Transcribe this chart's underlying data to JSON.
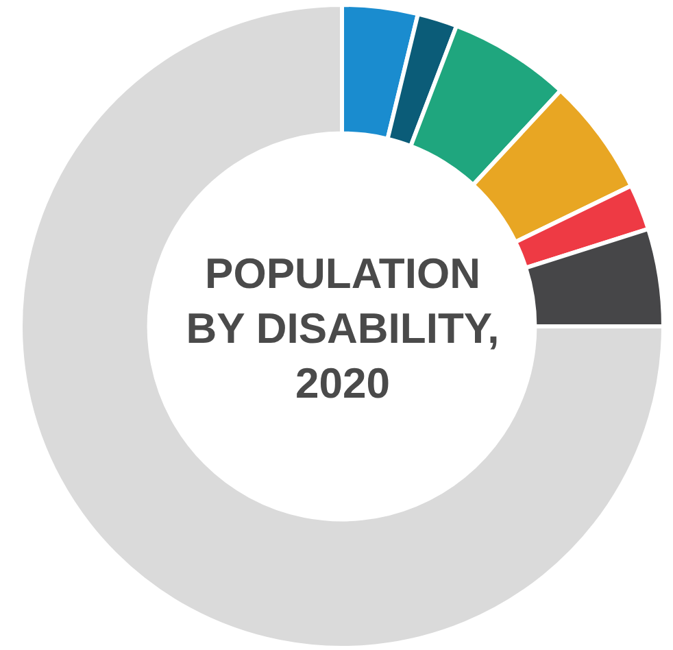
{
  "chart_data": {
    "type": "donut",
    "title": "POPULATION BY DISABILITY, 2020",
    "categories": [
      null,
      null,
      null,
      null,
      null,
      null,
      null
    ],
    "values": [
      3.8,
      2.0,
      6.1,
      5.9,
      2.3,
      4.9,
      75.0
    ],
    "colors": [
      "#1a8ccf",
      "#0b5c78",
      "#1fa67e",
      "#e8a623",
      "#ee3a44",
      "#464648",
      "#dadada"
    ],
    "legend": false
  }
}
